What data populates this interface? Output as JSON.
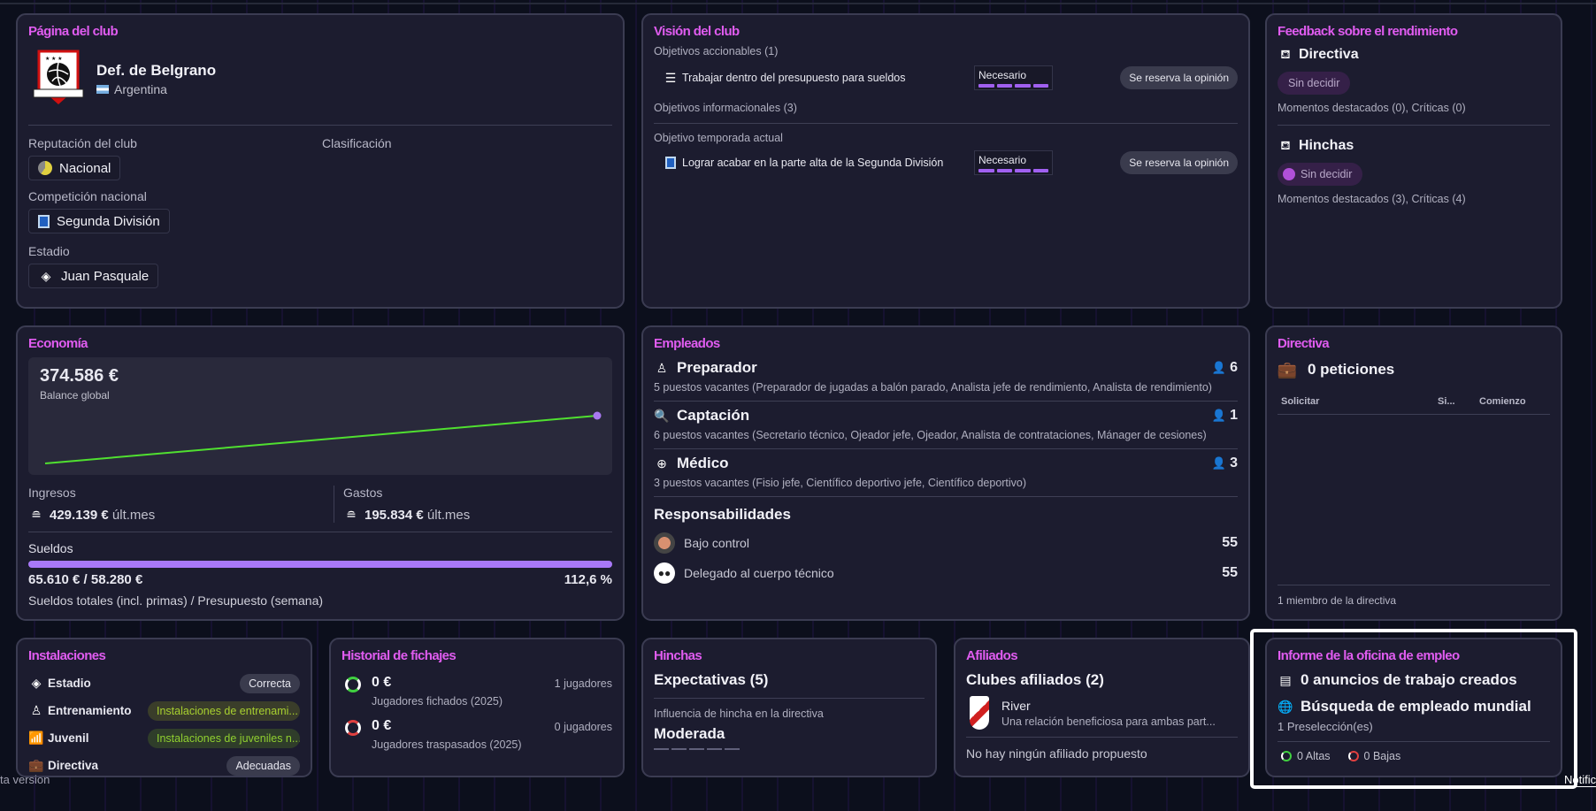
{
  "club_page": {
    "title": "Página del club",
    "name": "Def. de Belgrano",
    "country": "Argentina",
    "reputation_label": "Reputación del club",
    "reputation": "Nacional",
    "classification_label": "Clasificación",
    "competition_label": "Competición nacional",
    "competition": "Segunda División",
    "stadium_label": "Estadio",
    "stadium": "Juan Pasquale"
  },
  "vision": {
    "title": "Visión del club",
    "actionable": "Objetivos accionables",
    "actionable_count": "(1)",
    "objective1": "Trabajar dentro del presupuesto para sueldos",
    "objective1_level": "Necesario",
    "objective1_opinion": "Se reserva la opinión",
    "informational": "Objetivos informacionales",
    "informational_count": "(3)",
    "season_label": "Objetivo temporada actual",
    "objective2": "Lograr acabar en la parte alta de la Segunda División",
    "objective2_level": "Necesario",
    "objective2_opinion": "Se reserva la opinión"
  },
  "feedback": {
    "title": "Feedback sobre el rendimiento",
    "board": {
      "label": "Directiva",
      "status": "Sin decidir",
      "highlights": "Momentos destacados",
      "highlights_count": "(0)",
      "criticisms": "Críticas",
      "criticisms_count": "(0)"
    },
    "fans": {
      "label": "Hinchas",
      "status": "Sin decidir",
      "highlights": "Momentos destacados",
      "highlights_count": "(3)",
      "criticisms": "Críticas",
      "criticisms_count": "(4)"
    }
  },
  "economy": {
    "title": "Economía",
    "balance": "374.586 €",
    "balance_label": "Balance global",
    "income_label": "Ingresos",
    "income": "429.139 €",
    "income_period": "últ.mes",
    "expenses_label": "Gastos",
    "expenses": "195.834 €",
    "expenses_period": "últ.mes",
    "wages_label": "Sueldos",
    "wages": "65.610 € / 58.280 €",
    "wages_pct": "112,6 %",
    "wages_fill_pct": 100,
    "wages_caption": "Sueldos totales (incl. primas) / Presupuesto (semana)"
  },
  "staff": {
    "title": "Empleados",
    "groups": [
      {
        "name": "Preparador",
        "count": "6",
        "desc": "5 puestos vacantes (Preparador de jugadas a balón parado, Analista jefe de rendimiento, Analista de rendimiento)"
      },
      {
        "name": "Captación",
        "count": "1",
        "desc": "6 puestos vacantes (Secretario técnico, Ojeador jefe, Ojeador, Analista de contrataciones, Mánager de cesiones)"
      },
      {
        "name": "Médico",
        "count": "3",
        "desc": "3 puestos vacantes (Fisio jefe, Científico deportivo jefe, Científico deportivo)"
      }
    ],
    "resp_title": "Responsabilidades",
    "resp": [
      {
        "label": "Bajo control",
        "value": "55"
      },
      {
        "label": "Delegado al cuerpo técnico",
        "value": "55"
      }
    ]
  },
  "board": {
    "title": "Directiva",
    "requests": "0 peticiones",
    "col_request": "Solicitar",
    "col_si": "Si...",
    "col_start": "Comienzo",
    "footer": "1 miembro de la directiva"
  },
  "facilities": {
    "title": "Instalaciones",
    "items": [
      {
        "label": "Estadio",
        "value": "Correcta"
      },
      {
        "label": "Entrenamiento",
        "value": "Instalaciones de entrenami..."
      },
      {
        "label": "Juvenil",
        "value": "Instalaciones de juveniles n..."
      },
      {
        "label": "Directiva",
        "value": "Adecuadas"
      }
    ]
  },
  "transfers": {
    "title": "Historial de fichajes",
    "in_amount": "0 €",
    "in_label": "Jugadores fichados (2025)",
    "in_count": "1 jugadores",
    "out_amount": "0 €",
    "out_label": "Jugadores traspasados (2025)",
    "out_count": "0 jugadores"
  },
  "fans": {
    "title": "Hinchas",
    "expectations": "Expectativas (5)",
    "influence_label": "Influencia de hincha en la directiva",
    "influence": "Moderada",
    "influence_level": 0
  },
  "affiliates": {
    "title": "Afiliados",
    "heading": "Clubes afiliados (2)",
    "club": "River",
    "club_desc": "Una relación beneficiosa para ambas part...",
    "none": "No hay ningún afiliado propuesto"
  },
  "job_office": {
    "title": "Informe de la oficina de empleo",
    "ads": "0 anuncios de trabajo creados",
    "search": "Búsqueda de empleado mundial",
    "shortlist": "1 Preselección(es)",
    "ins": "0 Altas",
    "outs": "0 Bajas"
  },
  "footer": {
    "version": "ta version",
    "notifications": "Notific"
  }
}
